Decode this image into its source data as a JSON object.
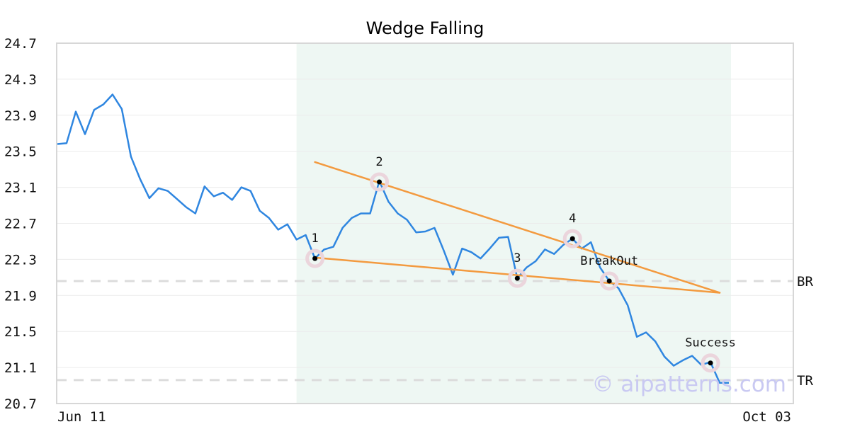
{
  "chart_data": {
    "type": "line",
    "title": "Wedge Falling",
    "xlabel": "",
    "ylabel": "",
    "x_ticks": [
      "Jun 11",
      "Oct 03"
    ],
    "y_ticks": [
      24.7,
      24.3,
      23.9,
      23.5,
      23.1,
      22.7,
      22.3,
      21.9,
      21.5,
      21.1,
      20.7
    ],
    "ylim": [
      20.7,
      24.7
    ],
    "grid": true,
    "series": [
      {
        "color": "#2f86e0",
        "values": [
          23.58,
          23.59,
          23.94,
          23.69,
          23.96,
          24.02,
          24.13,
          23.97,
          23.44,
          23.19,
          22.98,
          23.09,
          23.06,
          22.97,
          22.88,
          22.81,
          23.11,
          23.0,
          23.04,
          22.96,
          23.1,
          23.06,
          22.84,
          22.76,
          22.63,
          22.69,
          22.52,
          22.57,
          22.31,
          22.41,
          22.44,
          22.65,
          22.76,
          22.81,
          22.81,
          23.17,
          22.94,
          22.81,
          22.74,
          22.6,
          22.61,
          22.65,
          22.4,
          22.13,
          22.42,
          22.38,
          22.31,
          22.42,
          22.54,
          22.55,
          22.09,
          22.21,
          22.28,
          22.41,
          22.36,
          22.46,
          22.53,
          22.42,
          22.49,
          22.21,
          22.06,
          21.98,
          21.79,
          21.44,
          21.49,
          21.39,
          21.22,
          21.12,
          21.18,
          21.23,
          21.13,
          21.16,
          20.93,
          20.93
        ]
      }
    ],
    "highlight_region": {
      "start_index": 26,
      "end_index": 72,
      "color": "#eef7f3"
    },
    "trendlines": [
      {
        "name": "upper",
        "from": {
          "index": 28,
          "value": 23.38
        },
        "to": {
          "index": 72,
          "value": 21.93
        },
        "color": "#f39a3f"
      },
      {
        "name": "lower",
        "from": {
          "index": 28,
          "value": 22.32
        },
        "to": {
          "index": 72,
          "value": 21.93
        },
        "color": "#f39a3f"
      }
    ],
    "points": [
      {
        "label": "1",
        "index": 28,
        "value": 22.31,
        "label_pos": "above"
      },
      {
        "label": "2",
        "index": 35,
        "value": 23.16,
        "label_pos": "above"
      },
      {
        "label": "3",
        "index": 50,
        "value": 22.09,
        "label_pos": "above"
      },
      {
        "label": "4",
        "index": 56,
        "value": 22.53,
        "label_pos": "above"
      },
      {
        "label": "BreakOut",
        "index": 60,
        "value": 22.06,
        "label_pos": "above"
      },
      {
        "label": "Success",
        "index": 71,
        "value": 21.15,
        "label_pos": "above"
      }
    ],
    "levels": [
      {
        "label": "BR",
        "value": 22.06
      },
      {
        "label": "TR",
        "value": 20.96
      }
    ],
    "watermark": "© aipatterns.com"
  }
}
